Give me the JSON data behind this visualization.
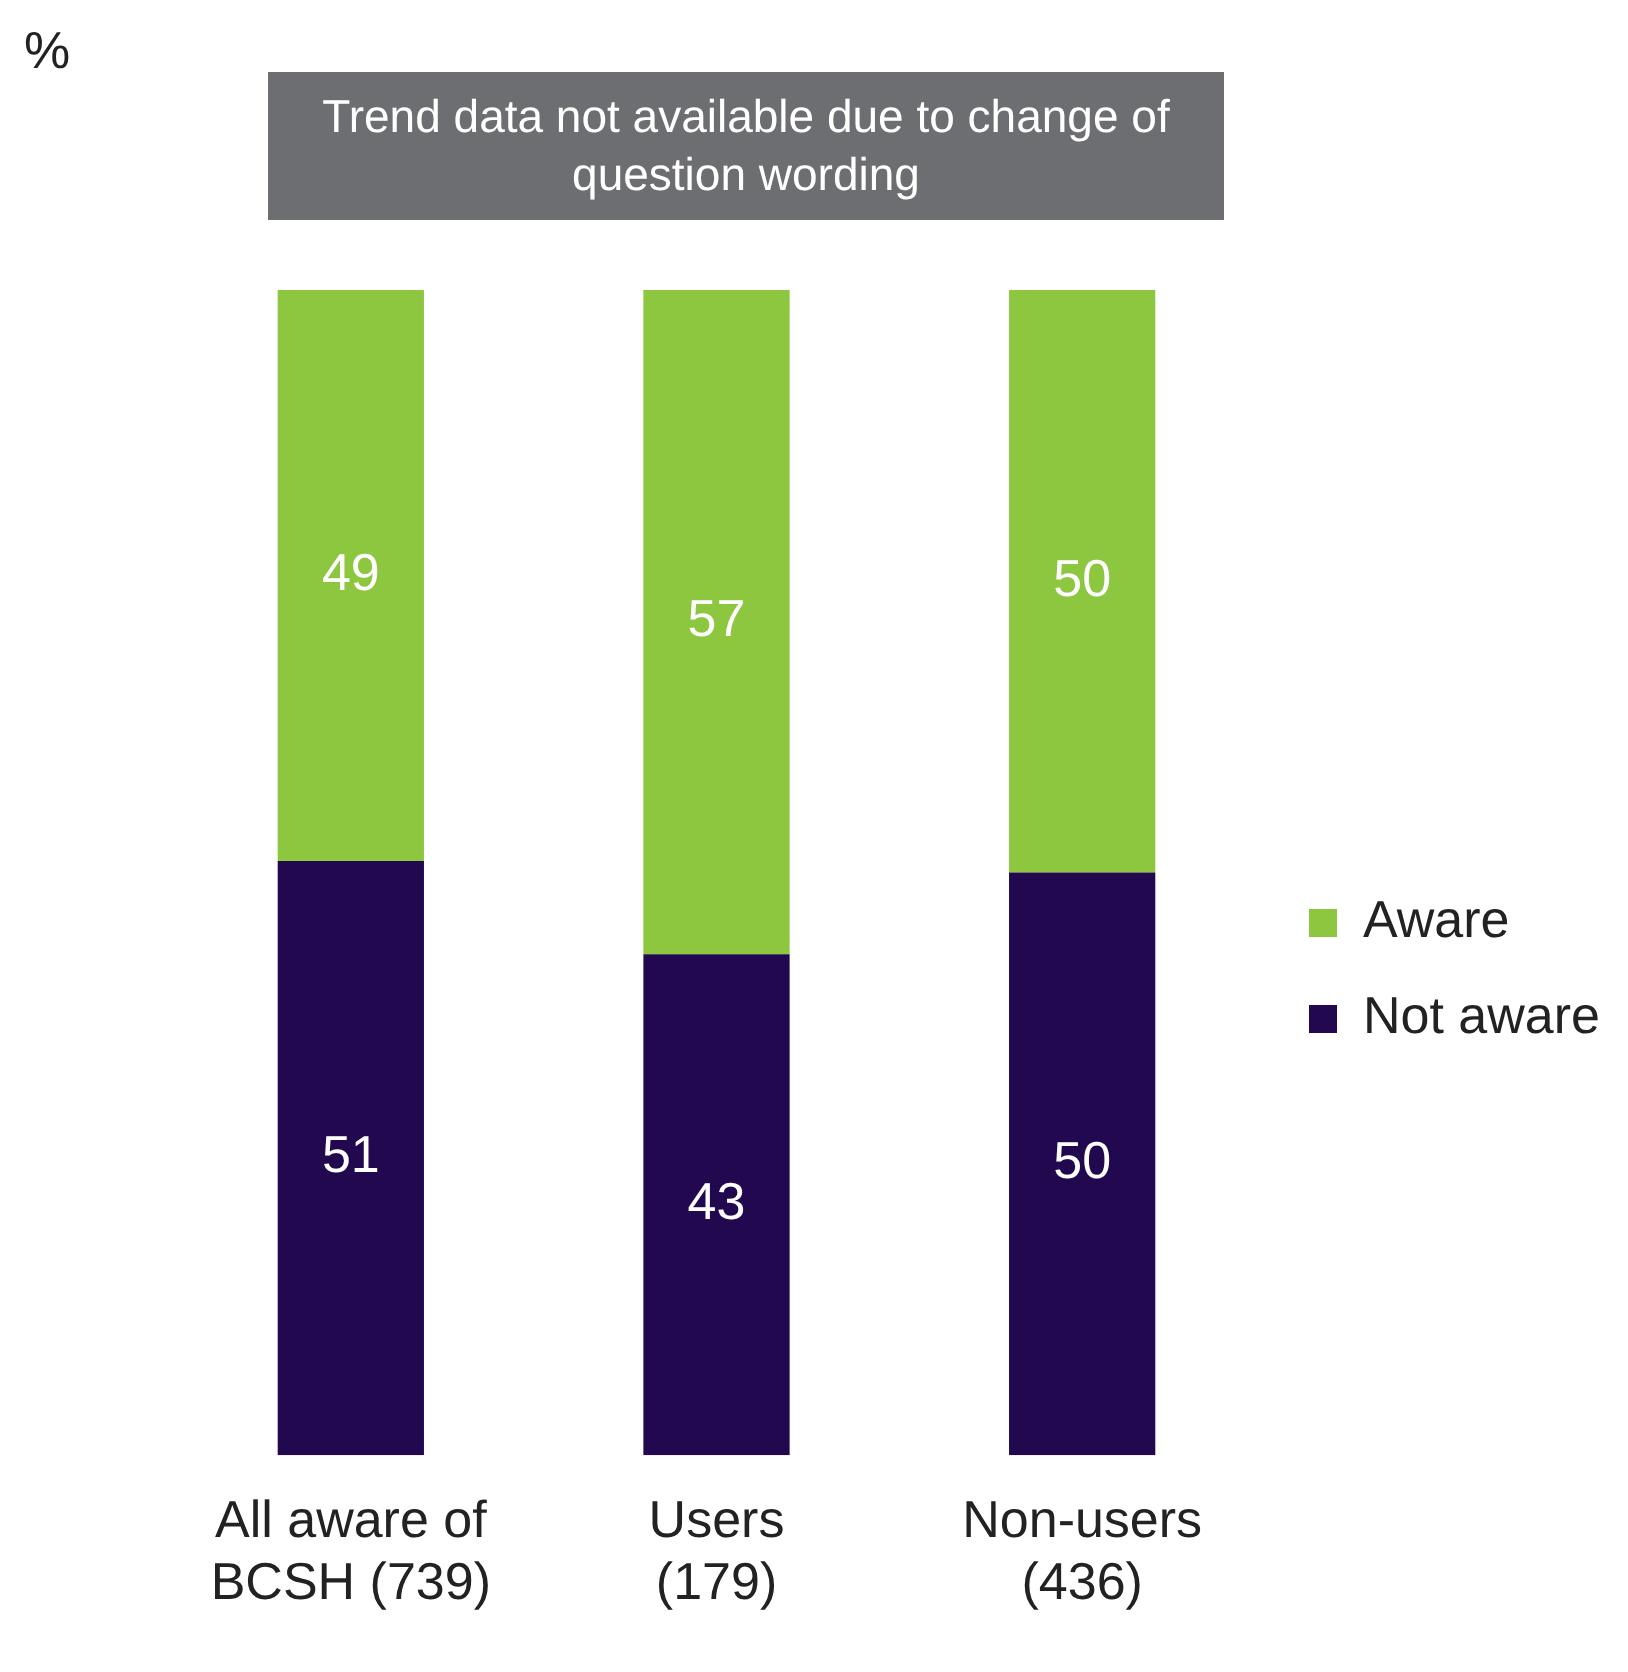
{
  "chart_data": {
    "type": "bar",
    "stacked": true,
    "ylabel": "%",
    "annotations": [
      "Trend data not available due to change of question wording"
    ],
    "categories": [
      "All aware of\nBCSH (739)",
      "Users\n(179)",
      "Non-users\n(436)"
    ],
    "series": [
      {
        "name": "Not aware",
        "color": "#22094f",
        "values": [
          51,
          43,
          50
        ]
      },
      {
        "name": "Aware",
        "color": "#8dc63f",
        "values": [
          49,
          57,
          50
        ]
      }
    ],
    "data_labels": true,
    "legend": "right",
    "grid": false
  }
}
